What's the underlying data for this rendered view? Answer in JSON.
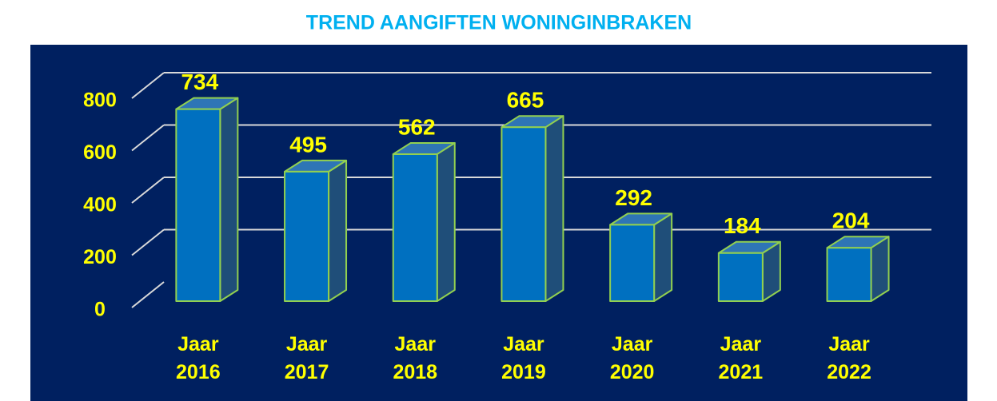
{
  "chart_data": {
    "type": "bar3d",
    "title": "TREND AANGIFTEN WONINGINBRAKEN",
    "categories": [
      "Jaar 2016",
      "Jaar 2017",
      "Jaar 2018",
      "Jaar 2019",
      "Jaar 2020",
      "Jaar 2021",
      "Jaar 2022"
    ],
    "values": [
      734,
      495,
      562,
      665,
      292,
      184,
      204
    ],
    "color": "#0070c0",
    "ylim": [
      0,
      800
    ],
    "yticks": [
      0,
      200,
      400,
      600,
      800
    ],
    "grid": true
  }
}
